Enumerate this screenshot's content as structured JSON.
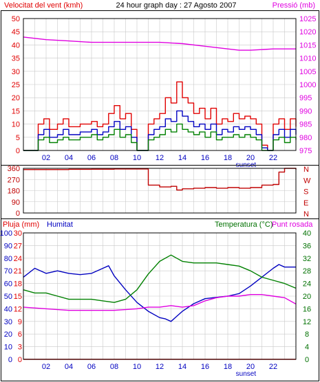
{
  "colors": {
    "background": "#ffffff",
    "frame": "#000000",
    "grid": "#c8c8c8",
    "red": "#e00000",
    "green": "#008000",
    "blue": "#0000c0",
    "magenta": "#e000e0",
    "darkred": "#c00000",
    "darkgreen": "#007000"
  },
  "chart_data": [
    {
      "id": "wind-pressure",
      "type": "line",
      "title": "24 hour graph day : 27 Agosto 2007",
      "ylabel": "Velocitat del vent (kmh)",
      "y2label": "Pressió (mb)",
      "x_range": [
        0,
        24
      ],
      "x_ticks": [
        "02",
        "04",
        "06",
        "08",
        "10",
        "12",
        "14",
        "16",
        "18",
        "20",
        "22"
      ],
      "x_marker": "sunset",
      "ylim": [
        0,
        50
      ],
      "y_ticks": [
        "0",
        "5",
        "10",
        "15",
        "20",
        "25",
        "30",
        "35",
        "40",
        "45",
        "50"
      ],
      "y2lim": [
        975,
        1025
      ],
      "y2_ticks": [
        "975",
        "980",
        "985",
        "990",
        "995",
        "1000",
        "1005",
        "1010",
        "1015",
        "1020",
        "1025"
      ],
      "grid": true,
      "series": [
        {
          "axis": "right",
          "color": "magenta",
          "style": "smooth",
          "x": [
            0,
            2,
            4,
            6,
            8,
            10,
            12,
            14,
            16,
            18,
            19,
            20,
            22,
            24
          ],
          "y": [
            1018,
            1017,
            1016.5,
            1016,
            1016,
            1016,
            1016,
            1015.5,
            1014.5,
            1013.5,
            1013,
            1013,
            1013.5,
            1013.5
          ]
        },
        {
          "axis": "left",
          "color": "red",
          "style": "step",
          "x": [
            0,
            0.8,
            1.3,
            1.8,
            2.3,
            3,
            3.5,
            4,
            5,
            6,
            6.5,
            7,
            7.5,
            8,
            8.5,
            9,
            9.5,
            10,
            10.5,
            11,
            11.5,
            12,
            12.5,
            13,
            13.5,
            14,
            14.5,
            15,
            15.5,
            16,
            16.5,
            17,
            17.5,
            18,
            18.5,
            19,
            19.5,
            20,
            20.5,
            21,
            21.5,
            22,
            22.5,
            23,
            23.5,
            24
          ],
          "y": [
            0,
            0,
            10,
            12,
            8,
            10,
            12,
            9,
            10,
            11,
            9,
            10,
            14,
            17,
            12,
            14,
            8,
            0,
            0,
            10,
            12,
            14,
            20,
            18,
            26,
            20,
            18,
            14,
            16,
            12,
            16,
            10,
            12,
            11,
            14,
            12,
            13,
            12,
            10,
            2,
            0,
            10,
            12,
            8,
            12,
            9
          ]
        },
        {
          "axis": "left",
          "color": "blue",
          "style": "step",
          "x": [
            0,
            0.8,
            1.3,
            1.8,
            2.3,
            3,
            3.5,
            4,
            5,
            6,
            6.5,
            7,
            7.5,
            8,
            8.5,
            9,
            9.5,
            10,
            10.5,
            11,
            11.5,
            12,
            12.5,
            13,
            13.5,
            14,
            14.5,
            15,
            15.5,
            16,
            16.5,
            17,
            17.5,
            18,
            18.5,
            19,
            19.5,
            20,
            20.5,
            21,
            21.5,
            22,
            22.5,
            23,
            23.5,
            24
          ],
          "y": [
            0,
            0,
            6,
            8,
            5,
            6,
            8,
            6,
            7,
            8,
            6,
            7,
            9,
            11,
            8,
            9,
            5,
            0,
            0,
            6,
            8,
            9,
            12,
            11,
            15,
            13,
            11,
            9,
            10,
            8,
            10,
            6,
            8,
            7,
            9,
            8,
            9,
            8,
            6,
            1,
            0,
            6,
            8,
            5,
            8,
            6
          ]
        },
        {
          "axis": "left",
          "color": "green",
          "style": "step",
          "x": [
            0,
            0.8,
            1.3,
            1.8,
            2.3,
            3,
            3.5,
            4,
            5,
            6,
            6.5,
            7,
            7.5,
            8,
            8.5,
            9,
            9.5,
            10,
            10.5,
            11,
            11.5,
            12,
            12.5,
            13,
            13.5,
            14,
            14.5,
            15,
            15.5,
            16,
            16.5,
            17,
            17.5,
            18,
            18.5,
            19,
            19.5,
            20,
            20.5,
            21,
            21.5,
            22,
            22.5,
            23,
            23.5,
            24
          ],
          "y": [
            0,
            0,
            4,
            5,
            3,
            4,
            5,
            4,
            5,
            6,
            4,
            5,
            6,
            8,
            5,
            6,
            3,
            0,
            0,
            4,
            5,
            6,
            8,
            7,
            10,
            8,
            7,
            6,
            7,
            5,
            7,
            4,
            5,
            5,
            6,
            5,
            6,
            5,
            4,
            0,
            0,
            4,
            5,
            3,
            5,
            4
          ]
        }
      ]
    },
    {
      "id": "wind-direction",
      "type": "line",
      "x_range": [
        0,
        24
      ],
      "ylim": [
        0,
        360
      ],
      "y_ticks": [
        "0",
        "90",
        "180",
        "270",
        "360"
      ],
      "y2_ticks": [
        "N",
        "E",
        "S",
        "W",
        "N"
      ],
      "grid": true,
      "series": [
        {
          "axis": "left",
          "color": "darkred",
          "style": "step",
          "x": [
            0,
            2,
            4,
            6,
            8,
            10,
            10.9,
            11,
            12,
            13,
            13.5,
            14,
            15,
            16,
            17,
            18,
            19,
            20,
            21,
            22,
            22.5,
            23,
            24
          ],
          "y": [
            350,
            350,
            352,
            353,
            355,
            355,
            355,
            225,
            210,
            215,
            185,
            195,
            200,
            205,
            200,
            205,
            200,
            205,
            225,
            230,
            330,
            360,
            350
          ]
        }
      ]
    },
    {
      "id": "rain-humidity-temperature",
      "type": "line",
      "ylabel": "Pluja (mm)",
      "ylabel2": "Humitat",
      "y2label": "Temperatura (°C)",
      "y3label": "Punt rosada",
      "x_range": [
        0,
        24
      ],
      "x_ticks": [
        "02",
        "04",
        "06",
        "08",
        "10",
        "12",
        "14",
        "16",
        "18",
        "20",
        "22"
      ],
      "x_marker": "sunset",
      "ylim": [
        0,
        100
      ],
      "y_ticks": [
        "0",
        "10",
        "20",
        "30",
        "40",
        "50",
        "60",
        "70",
        "80",
        "90",
        "100"
      ],
      "y_ticks_b": [
        "0",
        "3",
        "6",
        "9",
        "12",
        "15",
        "18",
        "21",
        "24",
        "27",
        "30"
      ],
      "y2lim": [
        0,
        40
      ],
      "y2_ticks": [
        "0",
        "4",
        "8",
        "12",
        "16",
        "20",
        "24",
        "28",
        "32",
        "36",
        "40"
      ],
      "grid": true,
      "series": [
        {
          "name": "Humitat",
          "axis": "left",
          "color": "blue",
          "style": "smooth",
          "x": [
            0,
            1,
            2,
            3,
            4,
            5,
            6,
            7,
            7.5,
            8,
            9,
            10,
            11,
            12,
            12.5,
            13,
            13.5,
            14,
            15,
            16,
            17,
            18,
            19,
            20,
            21,
            22,
            22.5,
            23,
            24
          ],
          "y": [
            65,
            72,
            68,
            70,
            68,
            67,
            68,
            72,
            74,
            66,
            55,
            45,
            38,
            33,
            32,
            30,
            34,
            38,
            44,
            48,
            49,
            50,
            52,
            58,
            65,
            72,
            75,
            73,
            73
          ]
        },
        {
          "name": "Temperatura",
          "axis": "right",
          "color": "green",
          "style": "smooth",
          "x": [
            0,
            1,
            2,
            3,
            4,
            5,
            6,
            7,
            8,
            9,
            10,
            11,
            12,
            13,
            13.5,
            14,
            15,
            16,
            17,
            18,
            19,
            20,
            21,
            22,
            23,
            24
          ],
          "y": [
            22,
            21,
            21,
            20,
            19,
            19,
            19,
            18.5,
            18,
            19,
            22,
            27,
            31,
            33,
            32,
            31,
            30.5,
            30.5,
            30.5,
            30,
            29.5,
            28,
            26,
            25,
            24,
            22.5
          ]
        },
        {
          "name": "Punt rosada",
          "axis": "right",
          "color": "magenta",
          "style": "smooth",
          "x": [
            0,
            2,
            4,
            6,
            8,
            10,
            11,
            12,
            13,
            14,
            15,
            16,
            17,
            18,
            19,
            20,
            21,
            22,
            23,
            24
          ],
          "y": [
            16.5,
            16,
            15.5,
            15.5,
            15.5,
            16,
            16.5,
            16.5,
            17,
            16.5,
            17,
            18.5,
            19.5,
            20,
            20,
            20.5,
            20.5,
            20,
            19.5,
            17.5
          ]
        },
        {
          "name": "Pluja",
          "axis": "left",
          "color": "red",
          "style": "step",
          "x": [
            0,
            24
          ],
          "y": [
            0,
            0
          ]
        }
      ]
    }
  ]
}
